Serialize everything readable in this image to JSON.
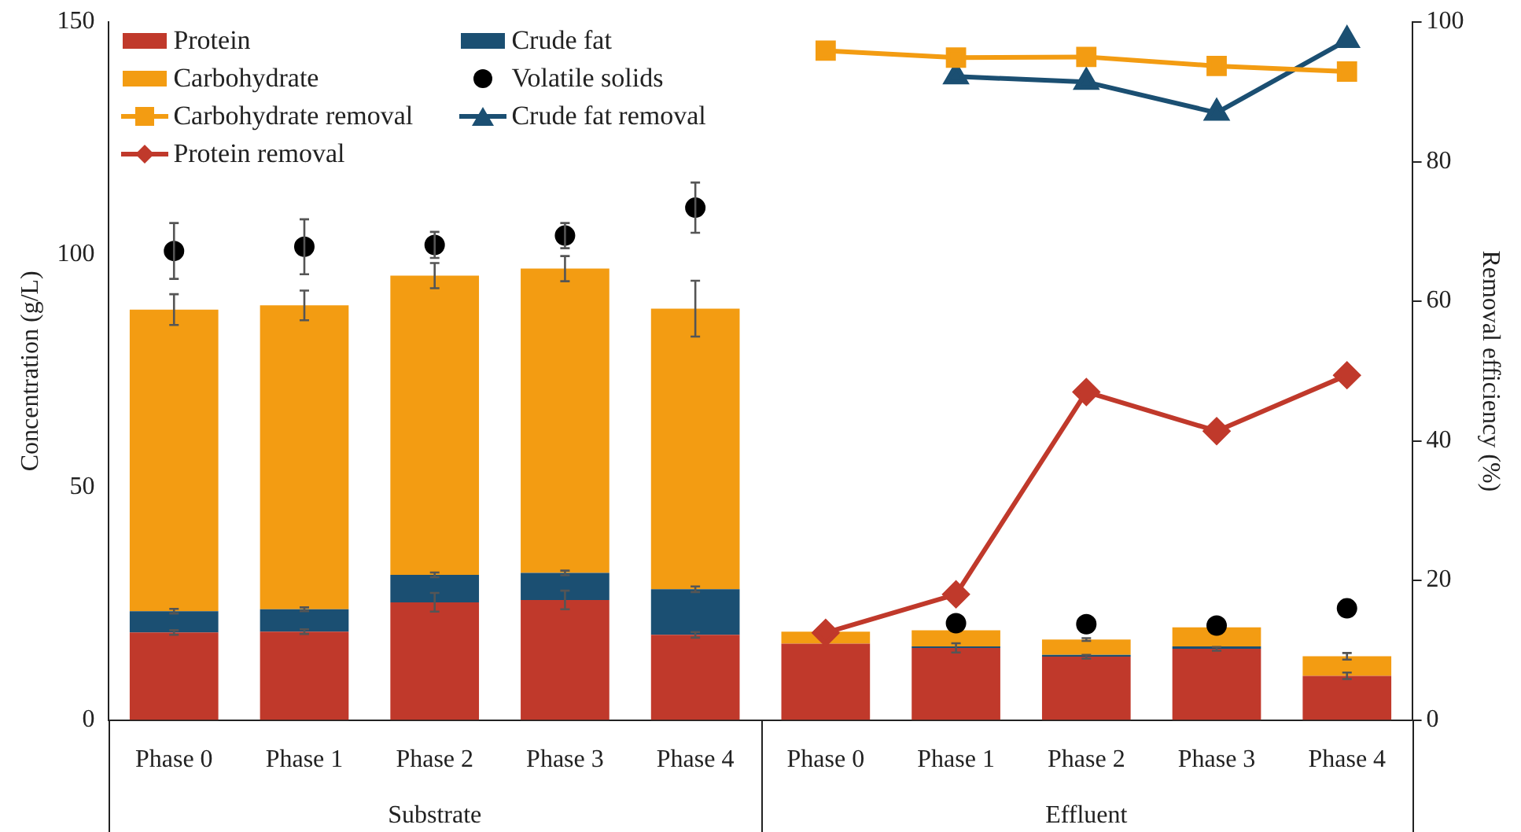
{
  "chart_data": {
    "type": "bar",
    "stacked": true,
    "ylabel": "Concentration (g/L)",
    "y2label": "Removal efficiency (%)",
    "categories": [
      "Phase 0",
      "Phase 1",
      "Phase 2",
      "Phase 3",
      "Phase 4",
      "Phase 0",
      "Phase 1",
      "Phase 2",
      "Phase 3",
      "Phase 4"
    ],
    "annotations": [
      "Substrate",
      "Effluent"
    ],
    "ylim": [
      0,
      150
    ],
    "yticks": [
      0,
      50,
      100,
      150
    ],
    "y2lim": [
      0,
      100
    ],
    "y2ticks": [
      0,
      20,
      40,
      60,
      80,
      100
    ],
    "grid": false,
    "legend": "top left",
    "series": [
      {
        "name": "Protein",
        "color": "#c0392b",
        "values": [
          18.8,
          19.0,
          25.3,
          25.8,
          18.3,
          16.4,
          15.5,
          13.6,
          15.3,
          9.5
        ],
        "errors": [
          0.5,
          0.5,
          2.0,
          2.0,
          0.6,
          null,
          1.0,
          0.4,
          0.4,
          0.7
        ]
      },
      {
        "name": "Crude fat",
        "color": "#1b4f72",
        "values": [
          4.6,
          4.8,
          5.9,
          5.8,
          9.8,
          null,
          0.3,
          0.4,
          0.5,
          null
        ],
        "errors": [
          0.5,
          0.4,
          0.5,
          0.5,
          0.6,
          null,
          null,
          null,
          null,
          null
        ]
      },
      {
        "name": "Carbohydrate",
        "color": "#f39c12",
        "values": [
          64.8,
          65.3,
          64.3,
          65.4,
          60.3,
          2.6,
          3.5,
          3.3,
          4.1,
          4.2
        ],
        "errors": [
          3.3,
          3.2,
          2.7,
          2.7,
          6.0,
          null,
          null,
          0.3,
          null,
          0.7
        ]
      },
      {
        "name": "Volatile solids",
        "type": "scatter",
        "marker": "circle",
        "color": "#000000",
        "values": [
          100.8,
          101.7,
          102.1,
          104.1,
          110.1,
          null,
          20.8,
          20.6,
          20.3,
          24.0
        ],
        "errors": [
          6.0,
          5.9,
          2.8,
          2.7,
          5.4,
          null,
          null,
          null,
          null,
          null
        ]
      },
      {
        "name": "Carbohydrate removal",
        "type": "line",
        "axis": "y2",
        "marker": "square",
        "color": "#f39c12",
        "values": [
          null,
          null,
          null,
          null,
          null,
          95.9,
          94.9,
          95.0,
          93.7,
          92.9
        ]
      },
      {
        "name": "Crude fat removal",
        "type": "line",
        "axis": "y2",
        "marker": "triangle",
        "color": "#1b4f72",
        "values": [
          null,
          null,
          null,
          null,
          null,
          null,
          92.2,
          91.4,
          87.0,
          97.4
        ]
      },
      {
        "name": "Protein removal",
        "type": "line",
        "axis": "y2",
        "marker": "diamond",
        "color": "#c0392b",
        "values": [
          null,
          null,
          null,
          null,
          null,
          12.5,
          18.0,
          47.0,
          41.4,
          49.4
        ]
      }
    ]
  }
}
